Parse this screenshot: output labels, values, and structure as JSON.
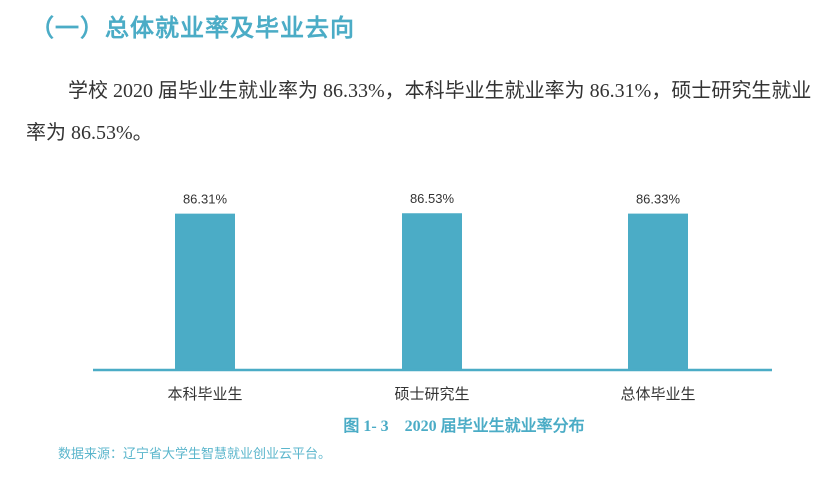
{
  "heading": "（一）总体就业率及毕业去向",
  "paragraph": "学校 2020 届毕业生就业率为 86.33%，本科毕业生就业率为 86.31%，硕士研究生就业率为 86.53%。",
  "chart_data": {
    "type": "bar",
    "categories": [
      "本科毕业生",
      "硕士研究生",
      "总体毕业生"
    ],
    "values": [
      86.31,
      86.53,
      86.33
    ],
    "data_labels": [
      "86.31%",
      "86.53%",
      "86.33%"
    ],
    "title": "图 1- 3　2020 届毕业生就业率分布",
    "xlabel": "",
    "ylabel": "",
    "ylim": [
      0,
      100
    ],
    "grid": false,
    "bar_color": "#4bacc6"
  },
  "source": "数据来源：辽宁省大学生智慧就业创业云平台。"
}
